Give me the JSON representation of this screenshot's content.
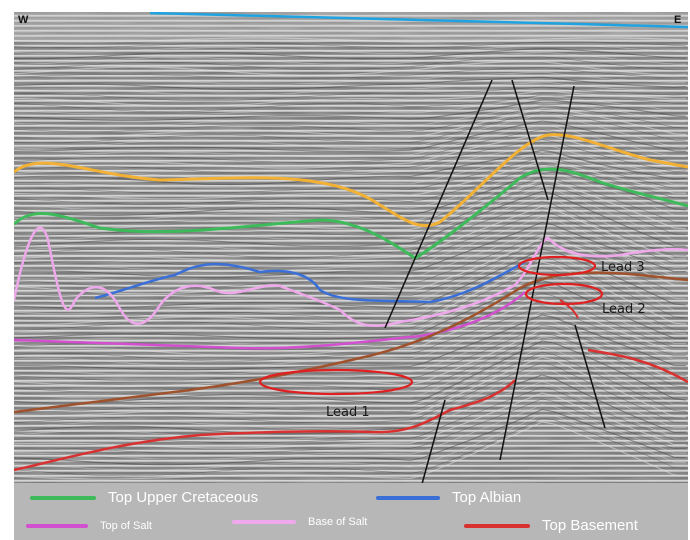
{
  "orientation": {
    "west": "W",
    "east": "E"
  },
  "leads": [
    {
      "label": "Lead 3"
    },
    {
      "label": "Lead 2"
    },
    {
      "label": "Lead 1"
    }
  ],
  "legend": [
    {
      "label": "Top Upper Cretaceous",
      "color": "#3dbb5a"
    },
    {
      "label": "Top Albian",
      "color": "#3a6fd8"
    },
    {
      "label": "Top of Salt",
      "color": "#d24fd0"
    },
    {
      "label": "Base of Salt",
      "color": "#f0a8ec"
    },
    {
      "label": "Top Basement",
      "color": "#d93030"
    }
  ],
  "horizon_colors": {
    "seabed": "#1fa3e0",
    "orange": "#f2b135",
    "brown": "#a0522d",
    "fault": "#111111",
    "lead_outline": "#e02020"
  }
}
